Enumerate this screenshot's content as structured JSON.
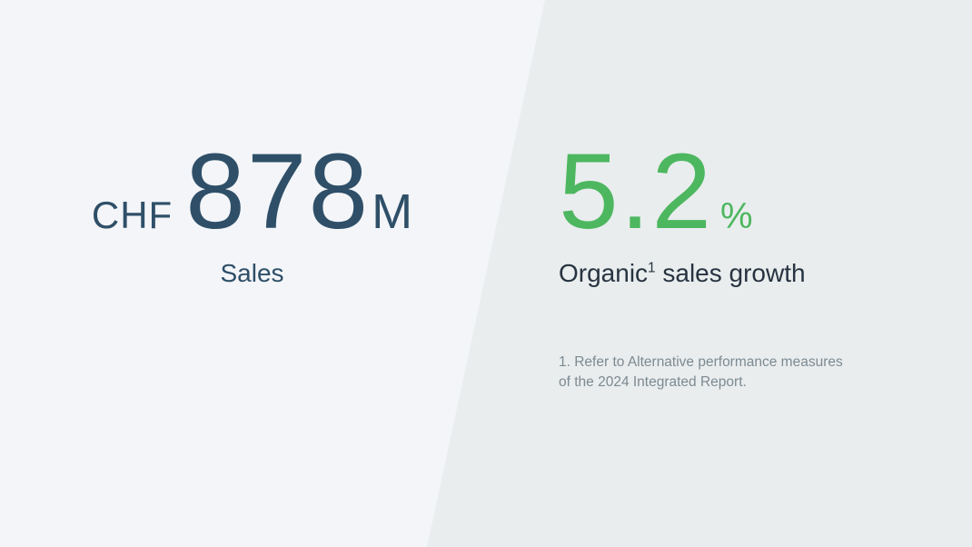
{
  "left_panel": {
    "currency": "CHF",
    "value": "878",
    "unit": "M",
    "label": "Sales"
  },
  "right_panel": {
    "value": "5.2",
    "unit": "%",
    "label_prefix": "Organic",
    "label_superscript": "1",
    "label_suffix": " sales growth",
    "footnote_line1": "1. Refer to Alternative performance measures",
    "footnote_line2": "of the 2024 Integrated Report."
  },
  "colors": {
    "left_bg": "#F3F5F8",
    "right_bg": "#E9EDEE",
    "dark_blue": "#2F4F68",
    "green": "#4DB75F",
    "label_dark": "#273340",
    "footnote_gray": "#7C8A92"
  }
}
